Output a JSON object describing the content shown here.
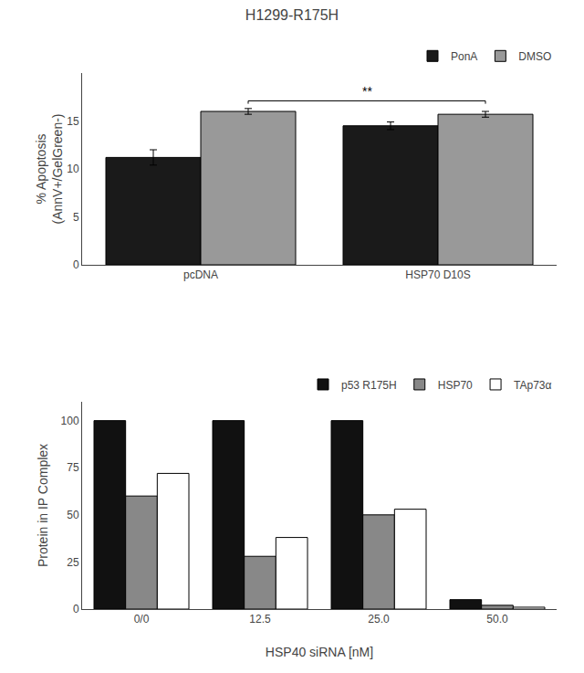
{
  "chart_data": [
    {
      "type": "bar",
      "title": "H1299-R175H",
      "ylabel": "% Apoptosis\n(AnnV+/GelGreen-)",
      "categories": [
        "pcDNA",
        "HSP70 D10S"
      ],
      "series": [
        {
          "name": "PonA",
          "color": "#1a1a1a",
          "values": [
            11.2,
            14.5
          ],
          "errors": [
            0.8,
            0.4
          ]
        },
        {
          "name": "DMSO",
          "color": "#999999",
          "values": [
            16.0,
            15.7
          ],
          "errors": [
            0.3,
            0.3
          ]
        }
      ],
      "ylim": [
        0,
        20
      ],
      "yticks": [
        0,
        5,
        10,
        15
      ],
      "legend": "upper right",
      "grid": false,
      "annotations": [
        {
          "text": "**"
        }
      ]
    },
    {
      "type": "bar",
      "xlabel": "HSP40 siRNA [nM]",
      "ylabel": "Protein in IP Complex",
      "categories": [
        "0/0",
        "12.5",
        "25.0",
        "50.0"
      ],
      "series": [
        {
          "name": "p53 R175H",
          "color": "#111111",
          "values": [
            100,
            100,
            100,
            5
          ]
        },
        {
          "name": "HSP70",
          "color": "#888888",
          "values": [
            60,
            28,
            50,
            2
          ]
        },
        {
          "name": "TAp73α",
          "color": "#ffffff",
          "values": [
            72,
            38,
            53,
            1
          ]
        }
      ],
      "ylim": [
        0,
        110
      ],
      "yticks": [
        0,
        25,
        50,
        75,
        100
      ],
      "legend": "upper right",
      "grid": false
    }
  ]
}
